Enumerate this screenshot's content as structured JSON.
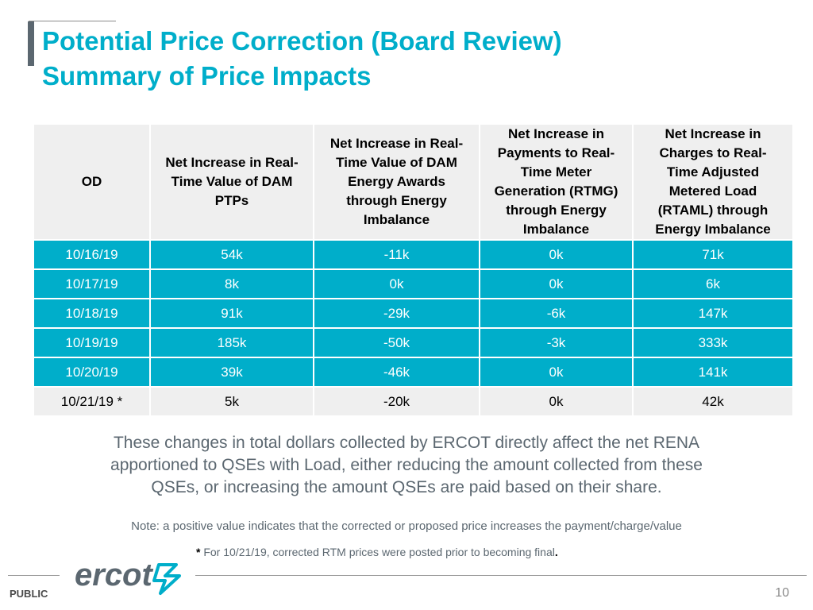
{
  "title": {
    "line1": "Potential Price Correction (Board Review)",
    "line2": "Summary of Price Impacts"
  },
  "table": {
    "headers": [
      [
        "OD"
      ],
      [
        "Net Increase in Real-",
        "Time Value of DAM",
        "PTPs"
      ],
      [
        "Net Increase in Real-",
        "Time Value of DAM",
        "Energy Awards",
        "through Energy",
        "Imbalance"
      ],
      [
        "Net Increase in",
        "Payments to Real-",
        "Time Meter",
        "Generation (RTMG)",
        "through Energy",
        "Imbalance"
      ],
      [
        "Net Increase in",
        "Charges to Real-",
        "Time Adjusted",
        "Metered Load",
        "(RTAML) through",
        "Energy Imbalance"
      ]
    ],
    "rows": [
      [
        "10/16/19",
        "54k",
        "-11k",
        "0k",
        "71k"
      ],
      [
        "10/17/19",
        "8k",
        "0k",
        "0k",
        "6k"
      ],
      [
        "10/18/19",
        "91k",
        "-29k",
        "-6k",
        "147k"
      ],
      [
        "10/19/19",
        "185k",
        "-50k",
        "-3k",
        "333k"
      ],
      [
        "10/20/19",
        "39k",
        "-46k",
        "0k",
        "141k"
      ],
      [
        "10/21/19 *",
        "5k",
        "-20k",
        "0k",
        "42k"
      ]
    ]
  },
  "summary": {
    "line1": "These changes in total dollars collected by ERCOT directly affect the net RENA",
    "line2": "apportioned to QSEs with Load, either reducing the amount collected from these",
    "line3": "QSEs, or increasing the amount QSEs are paid based on their share."
  },
  "note": "Note: a positive value indicates that the corrected or proposed price increases the payment/charge/value",
  "footnote": {
    "star": "*",
    "text": " For 10/21/19, corrected RTM prices were posted prior to becoming final",
    "end": "."
  },
  "footer": {
    "logo_text": "ercot",
    "classification": "PUBLIC",
    "page_number": "10"
  },
  "colors": {
    "accent": "#00aeca",
    "title_bar": "#5b6770",
    "row_light": "#efefef",
    "text_gray": "#5b6770"
  }
}
